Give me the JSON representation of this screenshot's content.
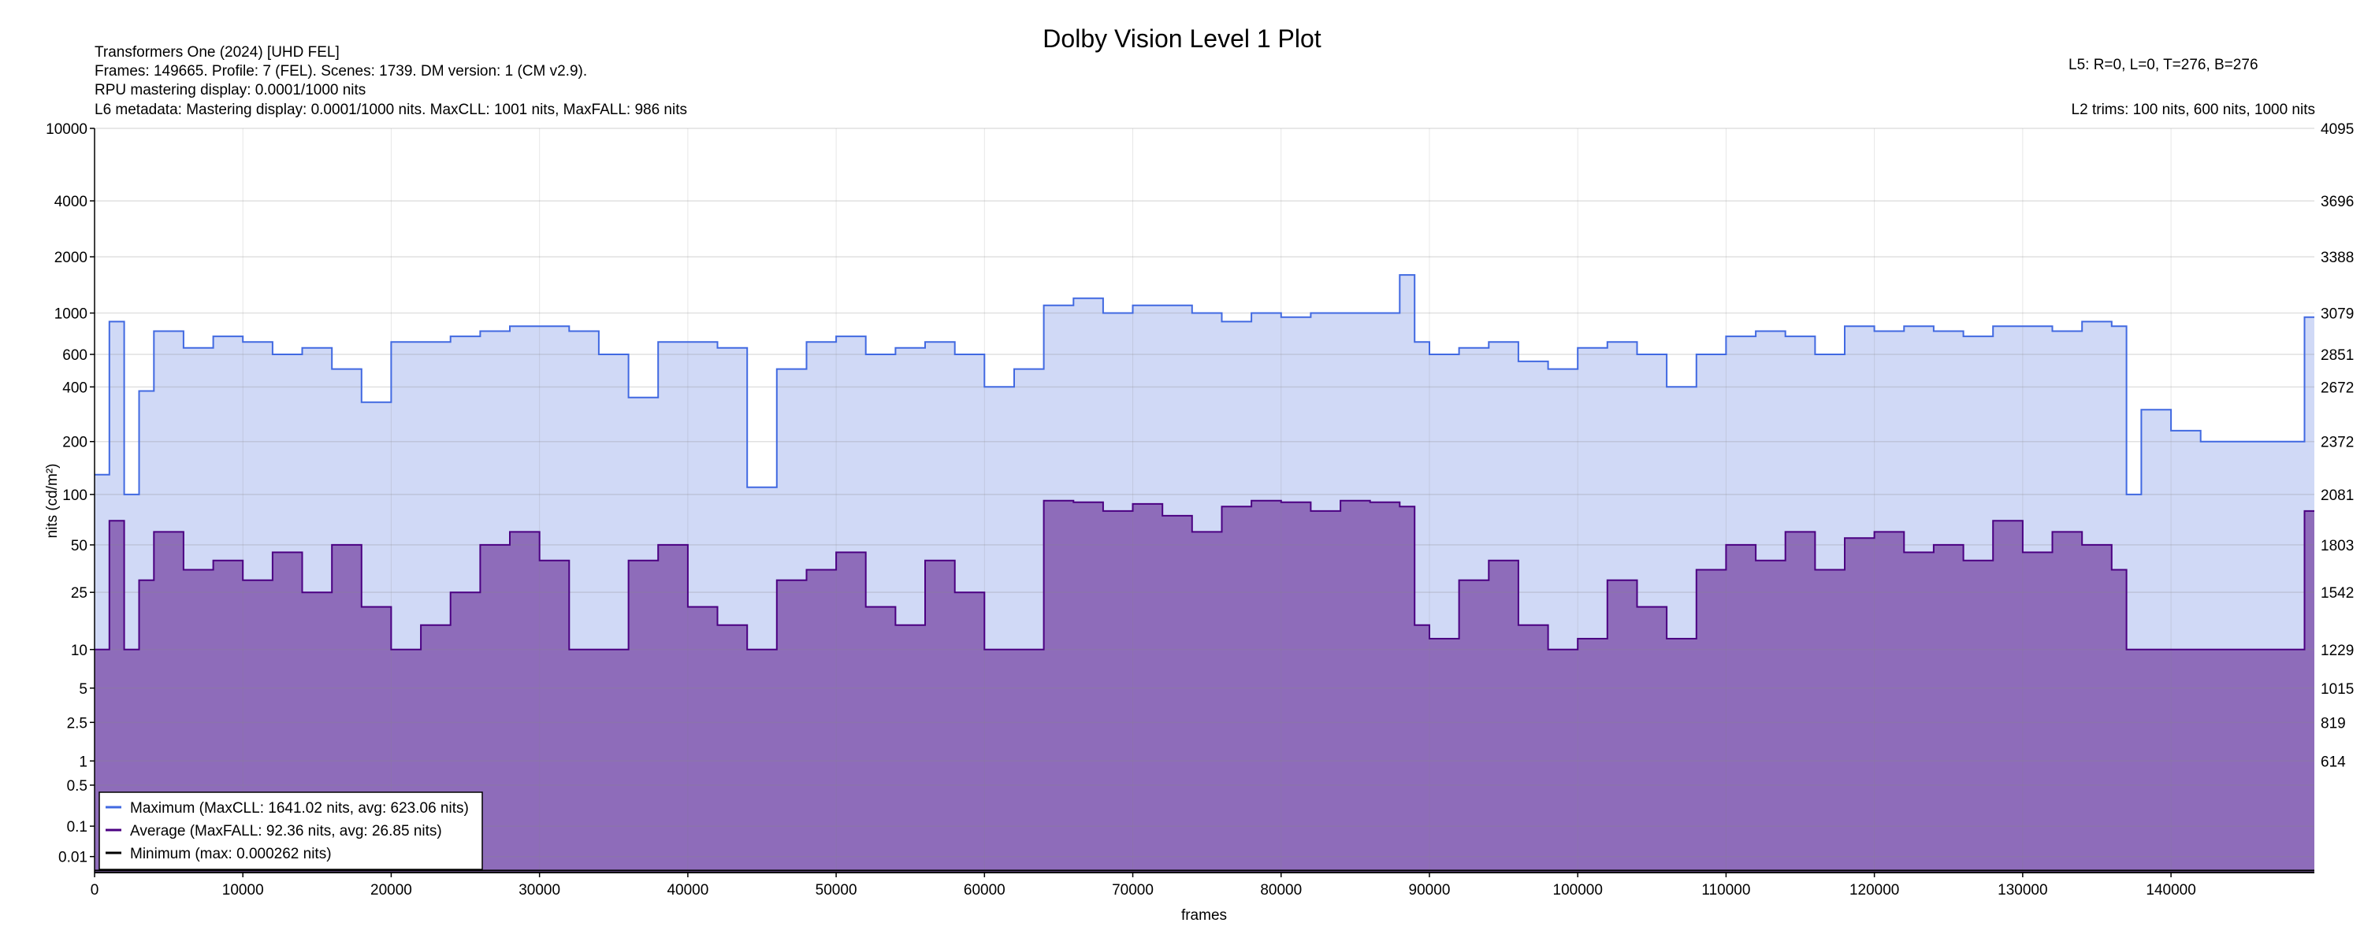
{
  "chart_data": {
    "type": "area",
    "title": "Dolby Vision Level 1 Plot",
    "xlabel": "frames",
    "ylabel": "nits (cd/m²)",
    "xlim": [
      0,
      149665
    ],
    "y_scale": "PQ",
    "x_ticks": [
      "0",
      "10000",
      "20000",
      "30000",
      "40000",
      "50000",
      "60000",
      "70000",
      "80000",
      "90000",
      "100000",
      "110000",
      "120000",
      "130000",
      "140000"
    ],
    "x_tick_values": [
      0,
      10000,
      20000,
      30000,
      40000,
      50000,
      60000,
      70000,
      80000,
      90000,
      100000,
      110000,
      120000,
      130000,
      140000
    ],
    "y_ticks_left": [
      "10000",
      "4000",
      "2000",
      "1000",
      "600",
      "400",
      "200",
      "100",
      "50",
      "25",
      "10",
      "5",
      "2.5",
      "1",
      "0.5",
      "0.1",
      "0.01"
    ],
    "y_tick_values": [
      10000,
      4000,
      2000,
      1000,
      600,
      400,
      200,
      100,
      50,
      25,
      10,
      5,
      2.5,
      1,
      0.5,
      0.1,
      0.01
    ],
    "y_ticks_right": [
      "4095",
      "3696",
      "3388",
      "3079",
      "2851",
      "2672",
      "2372",
      "2081",
      "1803",
      "1542",
      "1229",
      "1015",
      "819",
      "614"
    ],
    "y_ticks_right_nits": [
      10000,
      4000,
      2000,
      1000,
      600,
      400,
      200,
      100,
      50,
      25,
      10,
      5,
      2.5,
      1
    ],
    "grid": true,
    "legend_placement": "bottom-left",
    "series": [
      {
        "name": "Maximum (MaxCLL: 1641.02 nits, avg: 623.06 nits)",
        "color": "#4169e1",
        "fill": "#d0d9f6",
        "frames": [
          0,
          1000,
          2000,
          3000,
          4000,
          6000,
          8000,
          10000,
          12000,
          14000,
          16000,
          18000,
          20000,
          22000,
          24000,
          26000,
          28000,
          30000,
          32000,
          34000,
          36000,
          38000,
          40000,
          42000,
          44000,
          46000,
          48000,
          50000,
          52000,
          54000,
          56000,
          58000,
          60000,
          62000,
          64000,
          66000,
          68000,
          70000,
          72000,
          74000,
          76000,
          78000,
          80000,
          82000,
          84000,
          86000,
          88000,
          89000,
          90000,
          92000,
          94000,
          96000,
          98000,
          100000,
          102000,
          104000,
          106000,
          108000,
          110000,
          112000,
          114000,
          116000,
          118000,
          120000,
          122000,
          124000,
          126000,
          128000,
          130000,
          132000,
          134000,
          136000,
          137000,
          138000,
          140000,
          142000,
          144000,
          146000,
          148000,
          149000
        ],
        "values": [
          130,
          900,
          100,
          380,
          800,
          650,
          750,
          700,
          600,
          650,
          500,
          330,
          700,
          700,
          750,
          800,
          850,
          850,
          800,
          600,
          350,
          700,
          700,
          650,
          110,
          500,
          700,
          750,
          600,
          650,
          700,
          600,
          400,
          500,
          1100,
          1200,
          1000,
          1100,
          1100,
          1000,
          900,
          1000,
          950,
          1000,
          1000,
          1000,
          1600,
          700,
          600,
          650,
          700,
          550,
          500,
          650,
          700,
          600,
          400,
          600,
          750,
          800,
          750,
          600,
          850,
          800,
          850,
          800,
          750,
          850,
          850,
          800,
          900,
          850,
          100,
          300,
          230,
          200,
          200,
          200,
          200,
          950
        ]
      },
      {
        "name": "Average (MaxFALL: 92.36 nits, avg: 26.85 nits)",
        "color": "#4b0082",
        "fill": "#8e6cba",
        "frames": [
          0,
          1000,
          2000,
          3000,
          4000,
          6000,
          8000,
          10000,
          12000,
          14000,
          16000,
          18000,
          20000,
          22000,
          24000,
          26000,
          28000,
          30000,
          32000,
          34000,
          36000,
          38000,
          40000,
          42000,
          44000,
          46000,
          48000,
          50000,
          52000,
          54000,
          56000,
          58000,
          60000,
          62000,
          64000,
          66000,
          68000,
          70000,
          72000,
          74000,
          76000,
          78000,
          80000,
          82000,
          84000,
          86000,
          88000,
          89000,
          90000,
          92000,
          94000,
          96000,
          98000,
          100000,
          102000,
          104000,
          106000,
          108000,
          110000,
          112000,
          114000,
          116000,
          118000,
          120000,
          122000,
          124000,
          126000,
          128000,
          130000,
          132000,
          134000,
          136000,
          137000,
          138000,
          140000,
          142000,
          144000,
          146000,
          148000,
          149000
        ],
        "values": [
          10,
          70,
          10,
          30,
          60,
          35,
          40,
          30,
          45,
          25,
          50,
          20,
          10,
          15,
          25,
          50,
          60,
          40,
          10,
          10,
          40,
          50,
          20,
          15,
          10,
          30,
          35,
          45,
          20,
          15,
          40,
          25,
          10,
          10,
          92,
          90,
          80,
          88,
          75,
          60,
          85,
          92,
          90,
          80,
          92,
          90,
          85,
          15,
          12,
          30,
          40,
          15,
          10,
          12,
          30,
          20,
          12,
          35,
          50,
          40,
          60,
          35,
          55,
          60,
          45,
          50,
          40,
          70,
          45,
          60,
          50,
          35,
          10,
          10,
          10,
          10,
          10,
          10,
          10,
          80
        ]
      },
      {
        "name": "Minimum (max: 0.000262 nits)",
        "color": "#000000",
        "frames": [
          0,
          149665
        ],
        "values": [
          0.0001,
          0.0001
        ]
      }
    ],
    "annotations": {
      "info_lines": [
        "Transformers One (2024) [UHD FEL]",
        "Frames: 149665. Profile: 7 (FEL). Scenes: 1739. DM version: 1 (CM v2.9).",
        "RPU mastering display: 0.0001/1000 nits",
        "L6 metadata: Mastering display: 0.0001/1000 nits. MaxCLL: 1001 nits, MaxFALL: 986 nits"
      ],
      "l5": "L5: R=0, L=0, T=276, B=276",
      "l2": "L2 trims: 100 nits, 600 nits, 1000 nits"
    }
  }
}
